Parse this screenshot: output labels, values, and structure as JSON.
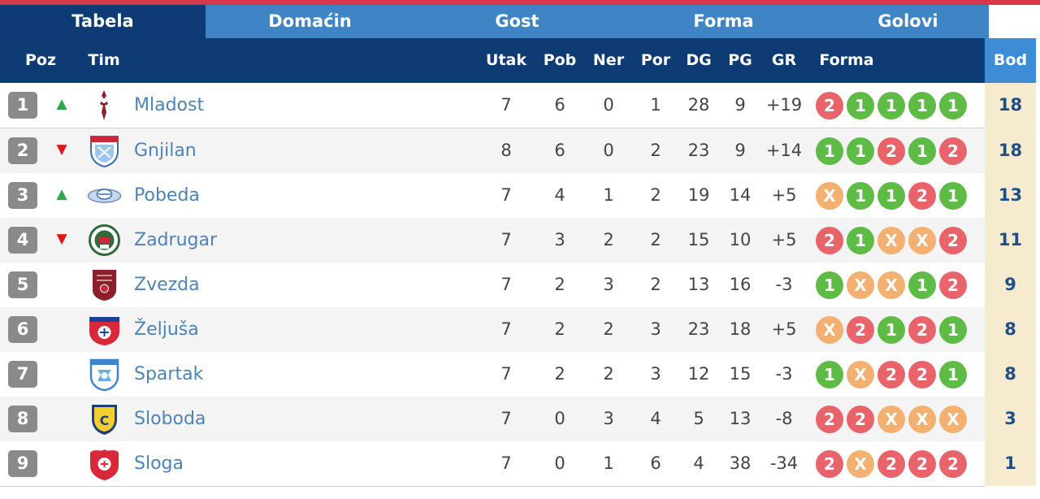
{
  "tabs": [
    {
      "label": "Tabela",
      "active": true
    },
    {
      "label": "Domaćin",
      "active": false
    },
    {
      "label": "Gost",
      "active": false
    },
    {
      "label": "Forma",
      "active": false
    },
    {
      "label": "Golovi",
      "active": false
    }
  ],
  "columns": {
    "poz": "Poz",
    "tim": "Tim",
    "utak": "Utak",
    "pob": "Pob",
    "ner": "Ner",
    "por": "Por",
    "dg": "DG",
    "pg": "PG",
    "gr": "GR",
    "forma": "Forma",
    "bod": "Bod"
  },
  "colors": {
    "win": "#5dbb46",
    "loss": "#e8646a",
    "draw": "#f4b070",
    "header": "#0f3b75",
    "accent": "#3d8cd6",
    "trend_up": "#2ea84f",
    "trend_down": "#e01818"
  },
  "rows": [
    {
      "pos": "1",
      "trend": "▲",
      "trend_dir": "up",
      "team": "Mladost",
      "logo_icon": "mladost-crest-icon",
      "utak": "7",
      "pob": "6",
      "ner": "0",
      "por": "1",
      "dg": "28",
      "pg": "9",
      "gr": "+19",
      "form": [
        "2",
        "1",
        "1",
        "1",
        "1"
      ],
      "bod": "18"
    },
    {
      "pos": "2",
      "trend": "▼",
      "trend_dir": "down",
      "team": "Gnjilan",
      "logo_icon": "gnjilan-crest-icon",
      "utak": "8",
      "pob": "6",
      "ner": "0",
      "por": "2",
      "dg": "23",
      "pg": "9",
      "gr": "+14",
      "form": [
        "1",
        "1",
        "2",
        "1",
        "2"
      ],
      "bod": "18"
    },
    {
      "pos": "3",
      "trend": "▲",
      "trend_dir": "up",
      "team": "Pobeda",
      "logo_icon": "pobeda-crest-icon",
      "utak": "7",
      "pob": "4",
      "ner": "1",
      "por": "2",
      "dg": "19",
      "pg": "14",
      "gr": "+5",
      "form": [
        "X",
        "1",
        "1",
        "2",
        "1"
      ],
      "bod": "13"
    },
    {
      "pos": "4",
      "trend": "▼",
      "trend_dir": "down",
      "team": "Zadrugar",
      "logo_icon": "zadrugar-crest-icon",
      "utak": "7",
      "pob": "3",
      "ner": "2",
      "por": "2",
      "dg": "15",
      "pg": "10",
      "gr": "+5",
      "form": [
        "2",
        "1",
        "X",
        "X",
        "2"
      ],
      "bod": "11"
    },
    {
      "pos": "5",
      "trend": "",
      "trend_dir": "none",
      "team": "Zvezda",
      "logo_icon": "zvezda-crest-icon",
      "utak": "7",
      "pob": "2",
      "ner": "3",
      "por": "2",
      "dg": "13",
      "pg": "16",
      "gr": "-3",
      "form": [
        "1",
        "X",
        "X",
        "1",
        "2"
      ],
      "bod": "9"
    },
    {
      "pos": "6",
      "trend": "",
      "trend_dir": "none",
      "team": "Željuša",
      "logo_icon": "zeljusa-crest-icon",
      "utak": "7",
      "pob": "2",
      "ner": "2",
      "por": "3",
      "dg": "23",
      "pg": "18",
      "gr": "+5",
      "form": [
        "X",
        "2",
        "1",
        "2",
        "1"
      ],
      "bod": "8"
    },
    {
      "pos": "7",
      "trend": "",
      "trend_dir": "none",
      "team": "Spartak",
      "logo_icon": "spartak-crest-icon",
      "utak": "7",
      "pob": "2",
      "ner": "2",
      "por": "3",
      "dg": "12",
      "pg": "15",
      "gr": "-3",
      "form": [
        "1",
        "X",
        "2",
        "2",
        "1"
      ],
      "bod": "8"
    },
    {
      "pos": "8",
      "trend": "",
      "trend_dir": "none",
      "team": "Sloboda",
      "logo_icon": "sloboda-crest-icon",
      "utak": "7",
      "pob": "0",
      "ner": "3",
      "por": "4",
      "dg": "5",
      "pg": "13",
      "gr": "-8",
      "form": [
        "2",
        "2",
        "X",
        "X",
        "X"
      ],
      "bod": "3"
    },
    {
      "pos": "9",
      "trend": "",
      "trend_dir": "none",
      "team": "Sloga",
      "logo_icon": "sloga-crest-icon",
      "utak": "7",
      "pob": "0",
      "ner": "1",
      "por": "6",
      "dg": "4",
      "pg": "38",
      "gr": "-34",
      "form": [
        "2",
        "X",
        "2",
        "2",
        "2"
      ],
      "bod": "1"
    }
  ]
}
